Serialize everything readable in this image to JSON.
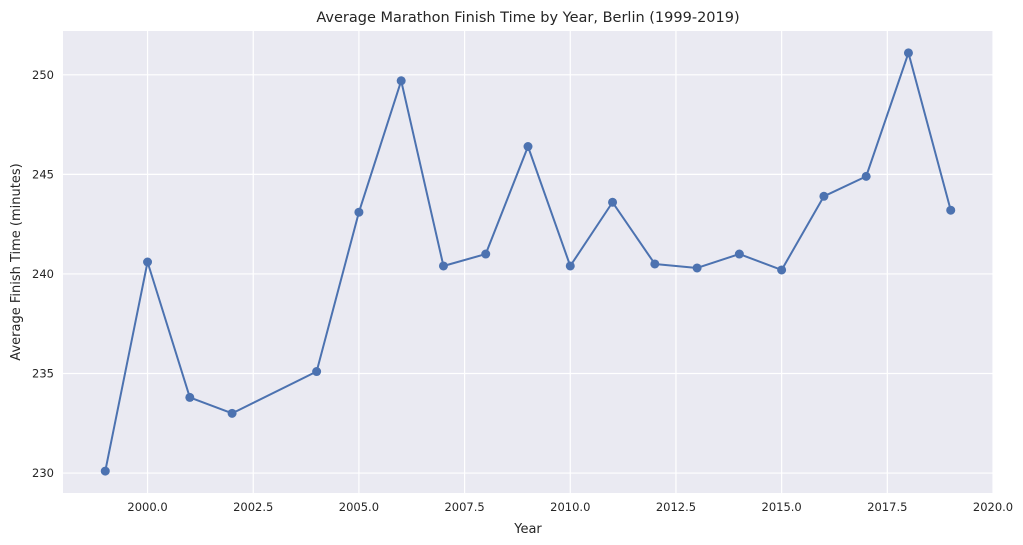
{
  "chart_data": {
    "type": "line",
    "title": "Average Marathon Finish Time by Year, Berlin (1999-2019)",
    "xlabel": "Year",
    "ylabel": "Average Finish Time (minutes)",
    "xlim": [
      1998,
      2020
    ],
    "ylim": [
      229.0,
      252.2
    ],
    "xticks": [
      2000.0,
      2002.5,
      2005.0,
      2007.5,
      2010.0,
      2012.5,
      2015.0,
      2017.5,
      2020.0
    ],
    "xtick_labels": [
      "2000.0",
      "2002.5",
      "2005.0",
      "2007.5",
      "2010.0",
      "2012.5",
      "2015.0",
      "2017.5",
      "2020.0"
    ],
    "yticks": [
      230,
      235,
      240,
      245,
      250
    ],
    "ytick_labels": [
      "230",
      "235",
      "240",
      "245",
      "250"
    ],
    "grid": true,
    "series": [
      {
        "color": "#4c72b0",
        "marker": "circle",
        "x": [
          1999,
          2000,
          2001,
          2002,
          2004,
          2005,
          2006,
          2007,
          2008,
          2009,
          2010,
          2011,
          2012,
          2013,
          2014,
          2015,
          2016,
          2017,
          2018,
          2019
        ],
        "values": [
          230.1,
          240.6,
          233.8,
          233.0,
          235.1,
          243.1,
          249.7,
          240.4,
          241.0,
          246.4,
          240.4,
          243.6,
          240.5,
          240.3,
          241.0,
          240.2,
          243.9,
          244.9,
          251.1,
          243.2
        ]
      }
    ]
  }
}
